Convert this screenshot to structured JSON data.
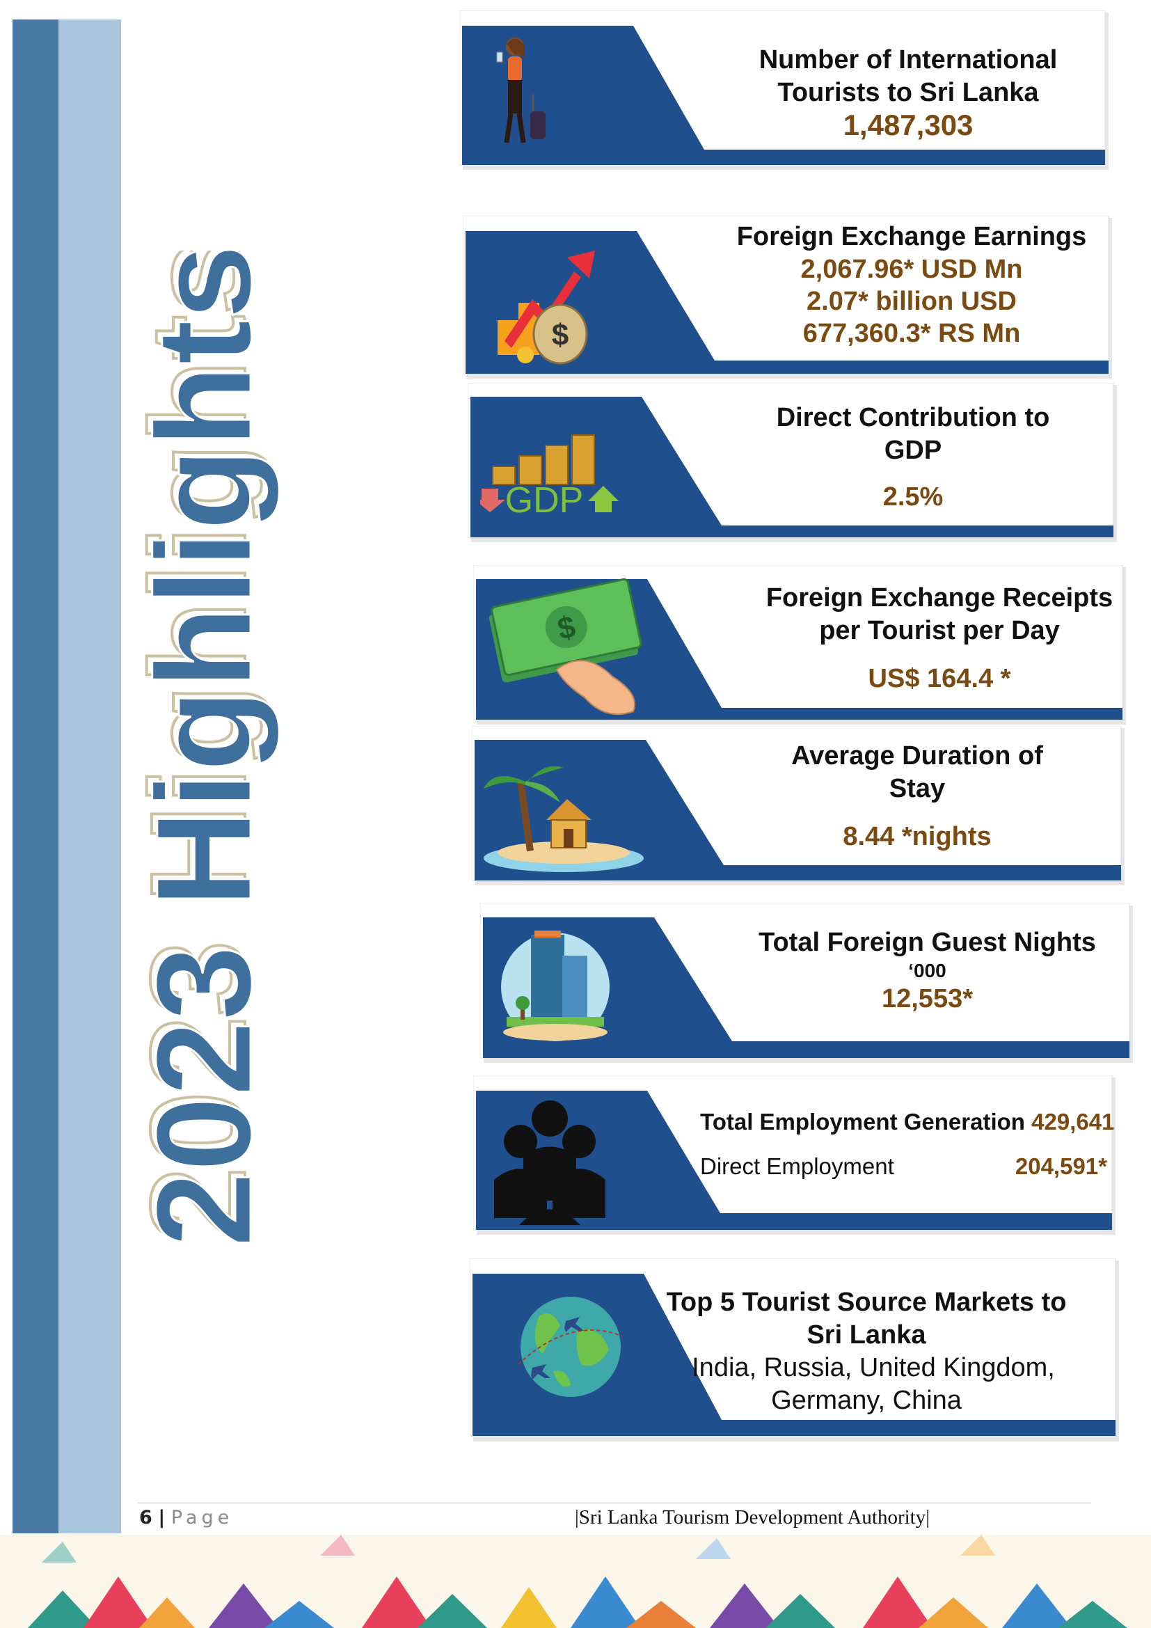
{
  "side_title": "2023 Highlights",
  "cards": [
    {
      "icon": "tourist-with-luggage",
      "title_lines": [
        "Number of International",
        "Tourists to Sri Lanka"
      ],
      "values": [
        "1,487,303"
      ]
    },
    {
      "icon": "money-bag-growth",
      "title_lines": [
        "Foreign Exchange Earnings"
      ],
      "values": [
        "2,067.96* USD Mn",
        "2.07* billion USD",
        "677,360.3* RS Mn"
      ]
    },
    {
      "icon": "gdp-coins",
      "icon_label": "GDP",
      "title_lines": [
        "Direct Contribution to",
        "GDP"
      ],
      "values": [
        "2.5%"
      ]
    },
    {
      "icon": "cash-in-hand",
      "title_lines": [
        "Foreign Exchange Receipts",
        "per Tourist per Day"
      ],
      "values": [
        "US$ 164.4 *"
      ]
    },
    {
      "icon": "island-hut",
      "title_lines": [
        "Average Duration of",
        "Stay"
      ],
      "values": [
        "8.44 *nights"
      ]
    },
    {
      "icon": "hotel-building",
      "title_lines": [
        "Total Foreign Guest Nights"
      ],
      "unit": "‘000",
      "values": [
        "12,553*"
      ]
    },
    {
      "icon": "people-group",
      "rows": [
        {
          "label": "Total Employment Generation",
          "value": "429,641"
        },
        {
          "label": "Direct Employment",
          "value": "204,591*"
        }
      ]
    },
    {
      "icon": "globe-planes",
      "title_lines": [
        "Top 5 Tourist Source Markets to",
        "Sri Lanka"
      ],
      "body_lines": [
        "India, Russia, United Kingdom,",
        "Germany, China"
      ]
    }
  ],
  "footer": {
    "page_number": "6",
    "separator": "|",
    "page_word": "Page",
    "organization": "|Sri Lanka Tourism Development Authority|"
  },
  "colors": {
    "card_blue": "#1f4f8c",
    "value_brown": "#7a4a10",
    "stripe_dark": "#4a7aa3",
    "stripe_light": "#a9c6de",
    "title_blue": "#3f6f9c"
  }
}
